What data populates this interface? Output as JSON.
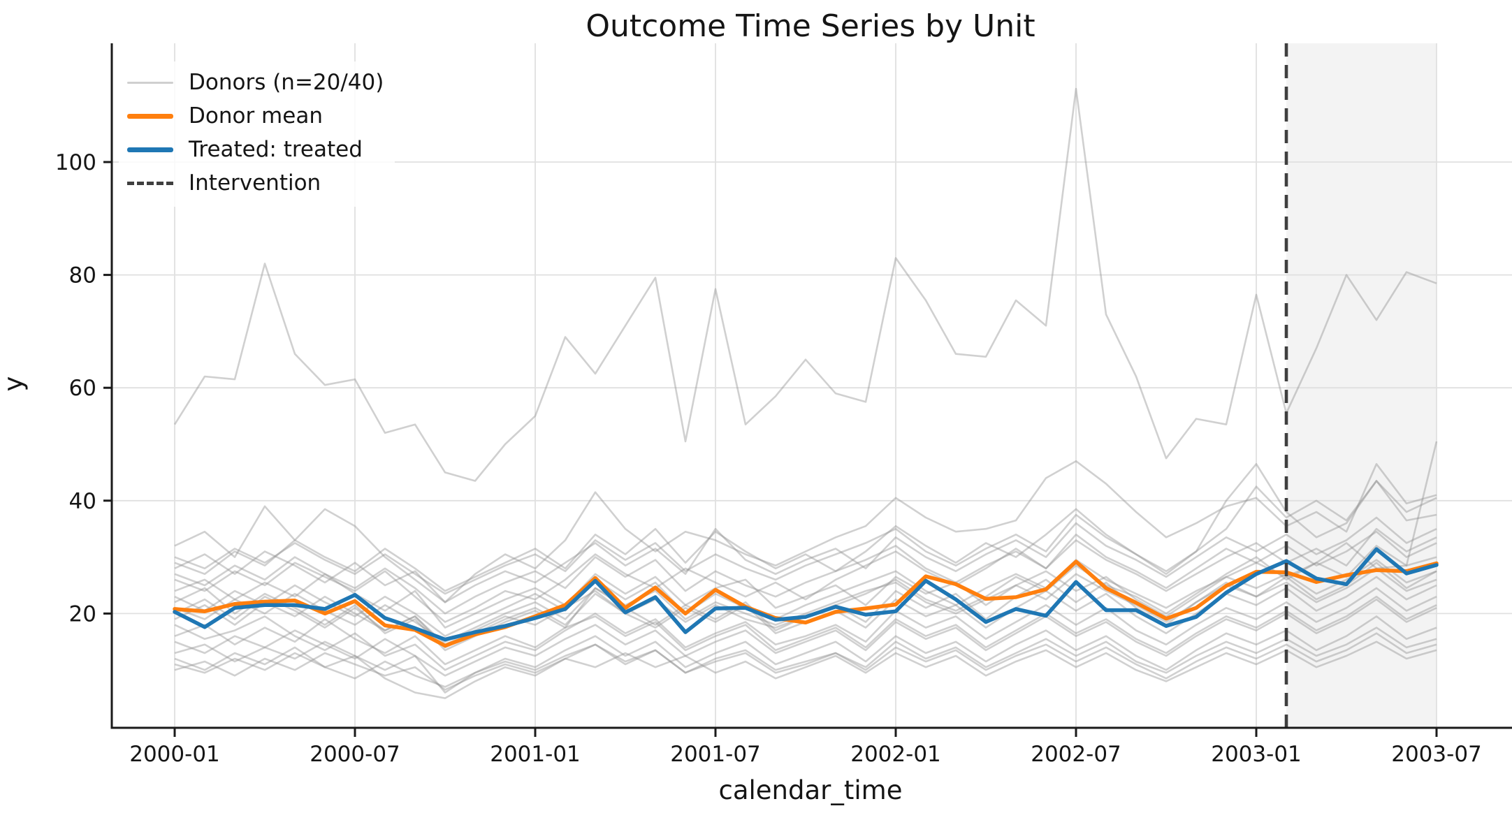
{
  "chart_data": {
    "type": "line",
    "title": "Outcome Time Series by Unit",
    "xlabel": "calendar_time",
    "ylabel": "y",
    "grid": true,
    "ylim": [
      0,
      120
    ],
    "y_ticks": [
      20,
      40,
      60,
      80,
      100
    ],
    "x": [
      "2000-01",
      "2000-02",
      "2000-03",
      "2000-04",
      "2000-05",
      "2000-06",
      "2000-07",
      "2000-08",
      "2000-09",
      "2000-10",
      "2000-11",
      "2000-12",
      "2001-01",
      "2001-02",
      "2001-03",
      "2001-04",
      "2001-05",
      "2001-06",
      "2001-07",
      "2001-08",
      "2001-09",
      "2001-10",
      "2001-11",
      "2001-12",
      "2002-01",
      "2002-02",
      "2002-03",
      "2002-04",
      "2002-05",
      "2002-06",
      "2002-07",
      "2002-08",
      "2002-09",
      "2002-10",
      "2002-11",
      "2002-12",
      "2003-01",
      "2003-02",
      "2003-03",
      "2003-04",
      "2003-05",
      "2003-06",
      "2003-07"
    ],
    "x_tick_indices": [
      0,
      6,
      12,
      18,
      24,
      30,
      36,
      42
    ],
    "x_tick_labels": [
      "2000-01",
      "2000-07",
      "2001-01",
      "2001-07",
      "2002-01",
      "2002-07",
      "2003-01",
      "2003-07"
    ],
    "intervention": {
      "index": 37,
      "x": "2003-02",
      "label": "Intervention"
    },
    "shaded_region": {
      "from_index": 37,
      "to_index": 42
    },
    "legend": {
      "position": "upper-left",
      "items": [
        {
          "label": "Donors (n=20/40)",
          "swatch": "thin-line",
          "color": "#cfcfcf"
        },
        {
          "label": "Donor mean",
          "swatch": "thick-line",
          "color": "#ff7f0e"
        },
        {
          "label": "Treated: treated",
          "swatch": "thick-line",
          "color": "#1f77b4"
        },
        {
          "label": "Intervention",
          "swatch": "dashed-line",
          "color": "#3f3f3f"
        }
      ]
    },
    "series": {
      "treated": {
        "name": "Treated: treated",
        "color": "#1f77b4",
        "width": 5.5,
        "values": [
          20.3,
          17.6,
          21.0,
          21.5,
          21.5,
          20.8,
          23.3,
          19.2,
          17.4,
          15.4,
          16.7,
          17.8,
          19.2,
          20.8,
          25.8,
          20.2,
          22.9,
          16.7,
          20.9,
          21.0,
          18.9,
          19.4,
          21.2,
          19.8,
          20.4,
          25.8,
          22.5,
          18.5,
          20.8,
          19.6,
          25.6,
          20.6,
          20.6,
          17.8,
          19.4,
          23.7,
          27.0,
          29.3,
          26.2,
          25.2,
          31.4,
          27.1,
          28.6
        ]
      },
      "donor_mean": {
        "name": "Donor mean",
        "color": "#ff7f0e",
        "width": 5.5,
        "values": [
          20.8,
          20.4,
          21.7,
          22.1,
          22.3,
          20.0,
          22.2,
          17.9,
          17.1,
          14.3,
          16.3,
          17.6,
          19.5,
          21.5,
          26.3,
          21.0,
          24.6,
          20.0,
          24.2,
          21.2,
          19.2,
          18.4,
          20.3,
          20.9,
          21.6,
          26.6,
          25.2,
          22.6,
          22.9,
          24.3,
          29.2,
          24.5,
          21.9,
          19.1,
          21.0,
          24.9,
          27.4,
          27.3,
          25.6,
          26.8,
          27.7,
          27.5,
          28.9
        ]
      },
      "donors": {
        "name": "Donors (n=20/40)",
        "color": "#909090",
        "opacity": 0.42,
        "width": 2.6,
        "values": [
          [
            53.5,
            62,
            61.5,
            82,
            66,
            60.5,
            61.5,
            52,
            53.5,
            45,
            43.5,
            50,
            55,
            69,
            62.5,
            71,
            79.5,
            50.5,
            77.5,
            53.5,
            58.5,
            65,
            59,
            57.5,
            83,
            75.5,
            66,
            65.5,
            75.5,
            71,
            113,
            73,
            62,
            47.5,
            54.5,
            53.5,
            76.5,
            55.5,
            67,
            80,
            72,
            80.5,
            78.5
          ],
          [
            32,
            34.5,
            30,
            39,
            33,
            38.5,
            35.5,
            30,
            26,
            22,
            27,
            30.5,
            28,
            33,
            41.5,
            35,
            31,
            34.5,
            33,
            30.5,
            28.5,
            31,
            33.5,
            35.5,
            40.5,
            37,
            34.5,
            35,
            36.5,
            44,
            47,
            43,
            38,
            33.5,
            36,
            39,
            40.5,
            35.5,
            38,
            34.5,
            46.5,
            39.5,
            41
          ],
          [
            29,
            27,
            31,
            28.5,
            33,
            30,
            27.5,
            31.5,
            28,
            24,
            26.5,
            29,
            31.5,
            28,
            34,
            30.5,
            35,
            29,
            34.5,
            31,
            28,
            30.5,
            27.5,
            31,
            35.5,
            32,
            29,
            32.5,
            30,
            34,
            38.5,
            34,
            30.5,
            27.5,
            31,
            40,
            46.5,
            38,
            33.5,
            36,
            43.5,
            36.5,
            37.5
          ],
          [
            26,
            24,
            27.5,
            25,
            29,
            26.5,
            24,
            27.5,
            23,
            18.5,
            21,
            24,
            22.5,
            26,
            30.5,
            27,
            24.5,
            28,
            25.5,
            23,
            25.5,
            22.5,
            26,
            28.5,
            31,
            27.5,
            25,
            28,
            31.5,
            28,
            33,
            29.5,
            27,
            24,
            27,
            30,
            32.5,
            29,
            31.5,
            28.5,
            35,
            31,
            33.5
          ],
          [
            22,
            24.5,
            20,
            23.5,
            21,
            18,
            21.5,
            16.5,
            19,
            13.5,
            16,
            18.5,
            20.5,
            17.5,
            24.5,
            21,
            18,
            21.5,
            19,
            22,
            17,
            19.5,
            21.5,
            18.5,
            24,
            21,
            23.5,
            19,
            23,
            26,
            22,
            25.5,
            21,
            18,
            22,
            25.5,
            23,
            26.5,
            22.5,
            25,
            29,
            24.5,
            27.5
          ],
          [
            18,
            15.5,
            17,
            19.5,
            16,
            13.5,
            16.5,
            12.5,
            14.5,
            10,
            12.5,
            15,
            13.5,
            17,
            20,
            16.5,
            19,
            14,
            16.5,
            18.5,
            14.5,
            16,
            18,
            15,
            20.5,
            17.5,
            19.5,
            15.5,
            18.5,
            21.5,
            18,
            21,
            17,
            14.5,
            18,
            21,
            19,
            22,
            18.5,
            21,
            24.5,
            20.5,
            23
          ],
          [
            12,
            10,
            13,
            11,
            14,
            10.5,
            12.5,
            8.5,
            6,
            5,
            8,
            10.5,
            9,
            12,
            14.5,
            11,
            13.5,
            9.5,
            12,
            13.5,
            10,
            11.5,
            13,
            10.5,
            15,
            12,
            14,
            10.5,
            13,
            15.5,
            12.5,
            15,
            11.5,
            9.5,
            12.5,
            15,
            13,
            15.5,
            12.5,
            14.5,
            17.5,
            14,
            15.5
          ],
          [
            10,
            11.5,
            9,
            12,
            10,
            13,
            11,
            9,
            10.5,
            6.5,
            9,
            11,
            9.5,
            12,
            10.5,
            13,
            10.5,
            12.5,
            9.5,
            11.5,
            8.5,
            10.5,
            12.5,
            9.5,
            13,
            10.5,
            12.5,
            9,
            11.5,
            13.5,
            10.5,
            13,
            10,
            8,
            10.5,
            13,
            11,
            13.5,
            10.5,
            12.5,
            15,
            12,
            13.5
          ],
          [
            19,
            21.5,
            18,
            22,
            19.5,
            23,
            20,
            17,
            19.5,
            14.5,
            17,
            19.5,
            18,
            21,
            24,
            20,
            22.5,
            18.5,
            21.5,
            19,
            17.5,
            19.5,
            21.5,
            23.5,
            26,
            22.5,
            20.5,
            23,
            26.5,
            24,
            28.5,
            25,
            23,
            20,
            23.5,
            27,
            30,
            26,
            29,
            32.5,
            28,
            28.5,
            50.5
          ],
          [
            23,
            20.5,
            24,
            21.5,
            25,
            22,
            19.5,
            23,
            20,
            16,
            18.5,
            21,
            23.5,
            20.5,
            26,
            22.5,
            25.5,
            20,
            23.5,
            21,
            19,
            21.5,
            23.5,
            25.5,
            27.5,
            24,
            21.5,
            24.5,
            27,
            24.5,
            29.5,
            26,
            23.5,
            21,
            24,
            26.5,
            29,
            26.5,
            29,
            26.5,
            32,
            28.5,
            30
          ],
          [
            28,
            30.5,
            27,
            31,
            28.5,
            25.5,
            29,
            25,
            27.5,
            22,
            25,
            27.5,
            25.5,
            29,
            32.5,
            28.5,
            31.5,
            27,
            35,
            29.5,
            27,
            29.5,
            31.5,
            28,
            33.5,
            30,
            27.5,
            30.5,
            33,
            30,
            36,
            32,
            29.5,
            26.5,
            30,
            33.5,
            31,
            34,
            30.5,
            33,
            37,
            32.5,
            35
          ],
          [
            15,
            13,
            16,
            14,
            17,
            14.5,
            12,
            15.5,
            12.5,
            9,
            11.5,
            14,
            12.5,
            15.5,
            18,
            14.5,
            17,
            12.5,
            15,
            17,
            13,
            15,
            17,
            13.5,
            18.5,
            15.5,
            17.5,
            13.5,
            16.5,
            19.5,
            16,
            18.5,
            15,
            12.5,
            16,
            19,
            17,
            20,
            16.5,
            19,
            22.5,
            18.5,
            21
          ],
          [
            20,
            22.5,
            19,
            23,
            20.5,
            17.5,
            21,
            17,
            19.5,
            14,
            16.5,
            19,
            21,
            18,
            23.5,
            20,
            17.5,
            21,
            18.5,
            21.5,
            16.5,
            18.5,
            20.5,
            17.5,
            22.5,
            19.5,
            21.5,
            17.5,
            21,
            24,
            20.5,
            23.5,
            19.5,
            16.5,
            20,
            23.5,
            21.5,
            24.5,
            20.5,
            23,
            26.5,
            22.5,
            25
          ],
          [
            11,
            9.5,
            12,
            10,
            13,
            10.5,
            8.5,
            11.5,
            9,
            7,
            9.5,
            11.5,
            10,
            12.5,
            14.5,
            11.5,
            13.5,
            9.5,
            11.5,
            13,
            9.5,
            11,
            13,
            10,
            14,
            11.5,
            13.5,
            10,
            12.5,
            14.5,
            11.5,
            14,
            11,
            8.5,
            11.5,
            14,
            12,
            14.5,
            11.5,
            13.5,
            16.5,
            13,
            14.5
          ],
          [
            24,
            26,
            22.5,
            25.5,
            23,
            27,
            23.5,
            20.5,
            24,
            17.5,
            20,
            22.5,
            24.5,
            21.5,
            27,
            23.5,
            26.5,
            21.5,
            24.5,
            26,
            21,
            23,
            25,
            21.5,
            26.5,
            23.5,
            25.5,
            21.5,
            25,
            27.5,
            24,
            26.5,
            22.5,
            19.5,
            23,
            26.5,
            24.5,
            27,
            23.5,
            26,
            29.5,
            25.5,
            27.5
          ],
          [
            16,
            18,
            14.5,
            17.5,
            15,
            19,
            15.5,
            13,
            16,
            11,
            13.5,
            16,
            14,
            17.5,
            19.5,
            16,
            18.5,
            13.5,
            16,
            18,
            13.5,
            15.5,
            17.5,
            14,
            19,
            16,
            18,
            14,
            17,
            20,
            16.5,
            19,
            15.5,
            13,
            16.5,
            19.5,
            17.5,
            20.5,
            17,
            19.5,
            23,
            19,
            21.5
          ],
          [
            27,
            25,
            28.5,
            26,
            30,
            27,
            24.5,
            28,
            24.5,
            20,
            23,
            25.5,
            27.5,
            24.5,
            30,
            26.5,
            29.5,
            24,
            27.5,
            25,
            23,
            25.5,
            27.5,
            29.5,
            32,
            28,
            25.5,
            28.5,
            31,
            28,
            34,
            30,
            27.5,
            24.5,
            28,
            31.5,
            29,
            32,
            28.5,
            31,
            34.5,
            30,
            32.5
          ],
          [
            13,
            14.5,
            11.5,
            14,
            12,
            15,
            12.5,
            10,
            12.5,
            6,
            9.5,
            12,
            10.5,
            13.5,
            16,
            12.5,
            15,
            10.5,
            13,
            15,
            11,
            13,
            15,
            11.5,
            16,
            13,
            15,
            11.5,
            14.5,
            17,
            13.5,
            16,
            12.5,
            10,
            13.5,
            16.5,
            14.5,
            17,
            13.5,
            16,
            19.5,
            15.5,
            17.5
          ],
          [
            21,
            19,
            22.5,
            20,
            23.5,
            20.5,
            18,
            21.5,
            18.5,
            15,
            17.5,
            20,
            22,
            19,
            24.5,
            21.5,
            24,
            19,
            22,
            20,
            18,
            20,
            22,
            24,
            25.5,
            22,
            20,
            22.5,
            25,
            22.5,
            27,
            24,
            21.5,
            18.5,
            22,
            25,
            23,
            25.5,
            22,
            24.5,
            28,
            24,
            26
          ],
          [
            30,
            28,
            31.5,
            29,
            32.5,
            29.5,
            27,
            30.5,
            27,
            23.5,
            26,
            28.5,
            30.5,
            27.5,
            33,
            29.5,
            32.5,
            27.5,
            30.5,
            28,
            26,
            28.5,
            30.5,
            32.5,
            35,
            31,
            28.5,
            31.5,
            34,
            31,
            37.5,
            33.5,
            30.5,
            27,
            31,
            35,
            42.5,
            37,
            40,
            36.5,
            43.5,
            38,
            40.5
          ]
        ]
      }
    }
  },
  "colors": {
    "treated": "#1f77b4",
    "donor_mean": "#ff7f0e",
    "donor": "#909090",
    "intervention_line": "#3f3f3f",
    "shading": "#f3f3f3",
    "grid": "#e0e0e0",
    "spine": "#1a1a1a",
    "text": "#151515"
  }
}
